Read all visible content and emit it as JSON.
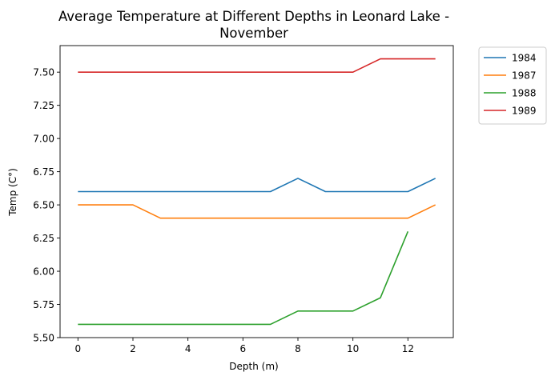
{
  "chart_data": {
    "type": "line",
    "title_line1": "Average Temperature at Different Depths in Leonard Lake -",
    "title_line2": "November",
    "xlabel": "Depth (m)",
    "ylabel": "Temp (C°)",
    "xlim": [
      -0.65,
      13.65
    ],
    "ylim": [
      5.5,
      7.7
    ],
    "xticks": [
      0,
      2,
      4,
      6,
      8,
      10,
      12
    ],
    "yticks": [
      5.5,
      5.75,
      6.0,
      6.25,
      6.5,
      6.75,
      7.0,
      7.25,
      7.5
    ],
    "ytick_labels": [
      "5.50",
      "5.75",
      "6.00",
      "6.25",
      "6.50",
      "6.75",
      "7.00",
      "7.25",
      "7.50"
    ],
    "grid": false,
    "legend_position": "outside-top-right",
    "series": [
      {
        "name": "1984",
        "color": "#1f77b4",
        "x": [
          0,
          1,
          2,
          3,
          4,
          5,
          6,
          7,
          8,
          9,
          10,
          11,
          12,
          13
        ],
        "y": [
          6.6,
          6.6,
          6.6,
          6.6,
          6.6,
          6.6,
          6.6,
          6.6,
          6.7,
          6.6,
          6.6,
          6.6,
          6.6,
          6.7
        ]
      },
      {
        "name": "1987",
        "color": "#ff7f0e",
        "x": [
          0,
          1,
          2,
          3,
          4,
          5,
          6,
          7,
          8,
          9,
          10,
          11,
          12,
          13
        ],
        "y": [
          6.5,
          6.5,
          6.5,
          6.4,
          6.4,
          6.4,
          6.4,
          6.4,
          6.4,
          6.4,
          6.4,
          6.4,
          6.4,
          6.5
        ]
      },
      {
        "name": "1988",
        "color": "#2ca02c",
        "x": [
          0,
          1,
          2,
          3,
          4,
          5,
          6,
          7,
          8,
          9,
          10,
          11,
          12
        ],
        "y": [
          5.6,
          5.6,
          5.6,
          5.6,
          5.6,
          5.6,
          5.6,
          5.6,
          5.7,
          5.7,
          5.7,
          5.8,
          6.3
        ]
      },
      {
        "name": "1989",
        "color": "#d62728",
        "x": [
          0,
          1,
          2,
          3,
          4,
          5,
          6,
          7,
          8,
          9,
          10,
          11,
          12,
          13
        ],
        "y": [
          7.5,
          7.5,
          7.5,
          7.5,
          7.5,
          7.5,
          7.5,
          7.5,
          7.5,
          7.5,
          7.5,
          7.6,
          7.6,
          7.6
        ]
      }
    ]
  }
}
